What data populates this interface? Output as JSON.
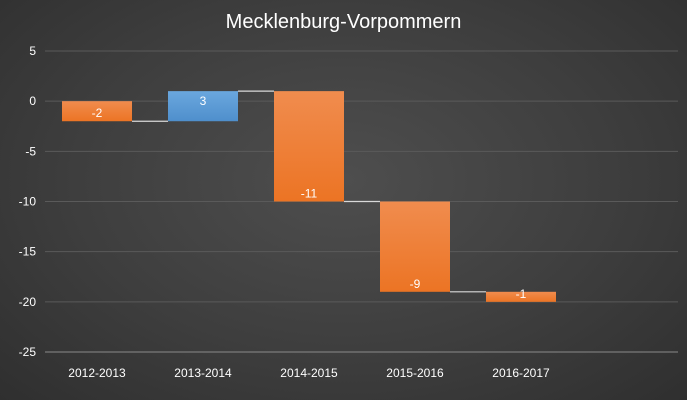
{
  "chart_data": {
    "type": "bar",
    "subtype": "waterfall",
    "title": "Mecklenburg-Vorpommern",
    "categories": [
      "2012-2013",
      "2013-2014",
      "2014-2015",
      "2015-2016",
      "2016-2017"
    ],
    "values": [
      -2,
      3,
      -11,
      -9,
      -1
    ],
    "data_labels": [
      "-2",
      "3",
      "-11",
      "-9",
      "-1"
    ],
    "ylim": [
      -25,
      5
    ],
    "y_ticks": [
      5,
      0,
      -5,
      -10,
      -15,
      -20,
      -25
    ],
    "grid": true,
    "legend": "none",
    "colors": {
      "increase": "#5b9bd5",
      "decrease": "#ed7d31",
      "grid": "#5a5a5a",
      "connector": "#d9d9d9",
      "text": "#ffffff"
    }
  }
}
